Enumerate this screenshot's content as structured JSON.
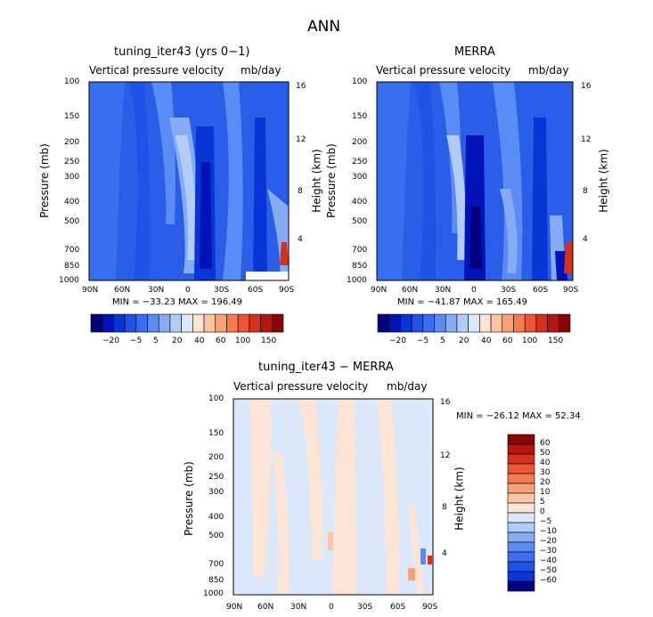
{
  "figure": {
    "title": "ANN",
    "colors": {
      "blue_shades": [
        "#00007f",
        "#0013b8",
        "#0a35d6",
        "#1f52e6",
        "#3a6ef0",
        "#5b8cf5",
        "#86acf8",
        "#b2ccfa",
        "#dbe8fc"
      ],
      "warm_shades": [
        "#fde4d4",
        "#fbc5a5",
        "#f8a176",
        "#f47b52",
        "#ec5634",
        "#d8301d",
        "#b31510",
        "#860605"
      ]
    }
  },
  "chart_data": [
    {
      "type": "heatmap",
      "title": "tuning_iter43 (yrs 0−1)",
      "subtitle_left": "Vertical pressure velocity",
      "subtitle_right": "mb/day",
      "xlabel": "",
      "ylabel": "Pressure (mb)",
      "ylabel_right": "Height (km)",
      "x_ticks": [
        "90N",
        "60N",
        "30N",
        "0",
        "30S",
        "60S",
        "90S"
      ],
      "y_ticks": [
        "100",
        "150",
        "200",
        "250",
        "300",
        "400",
        "500",
        "700",
        "850",
        "1000"
      ],
      "y_ticks_right": [
        "16",
        "12",
        "8",
        "4"
      ],
      "stats": "MIN = −33.23   MAX = 196.49",
      "colorbar_labels": [
        "−20",
        "−5",
        "5",
        "20",
        "40",
        "60",
        "100",
        "150"
      ]
    },
    {
      "type": "heatmap",
      "title": "MERRA",
      "subtitle_left": "Vertical pressure velocity",
      "subtitle_right": "mb/day",
      "xlabel": "",
      "ylabel": "Pressure (mb)",
      "ylabel_right": "Height (km)",
      "x_ticks": [
        "90N",
        "60N",
        "30N",
        "0",
        "30S",
        "60S",
        "90S"
      ],
      "y_ticks": [
        "100",
        "150",
        "200",
        "250",
        "300",
        "400",
        "500",
        "700",
        "850",
        "1000"
      ],
      "y_ticks_right": [
        "16",
        "12",
        "8",
        "4"
      ],
      "stats": "MIN = −41.87   MAX = 165.49",
      "colorbar_labels": [
        "−20",
        "−5",
        "5",
        "20",
        "40",
        "60",
        "100",
        "150"
      ]
    },
    {
      "type": "heatmap",
      "title": "tuning_iter43 − MERRA",
      "subtitle_left": "Vertical pressure velocity",
      "subtitle_right": "mb/day",
      "xlabel": "",
      "ylabel": "Pressure (mb)",
      "ylabel_right": "Height (km)",
      "x_ticks": [
        "90N",
        "60N",
        "30N",
        "0",
        "30S",
        "60S",
        "90S"
      ],
      "y_ticks": [
        "100",
        "150",
        "200",
        "250",
        "300",
        "400",
        "500",
        "700",
        "850",
        "1000"
      ],
      "y_ticks_right": [
        "16",
        "12",
        "8",
        "4"
      ],
      "stats": "MIN = −26.12   MAX =  52.34",
      "colorbar_labels": [
        "60",
        "50",
        "40",
        "30",
        "20",
        "10",
        "5",
        "0",
        "−5",
        "−10",
        "−20",
        "−30",
        "−40",
        "−50",
        "−60"
      ]
    }
  ]
}
